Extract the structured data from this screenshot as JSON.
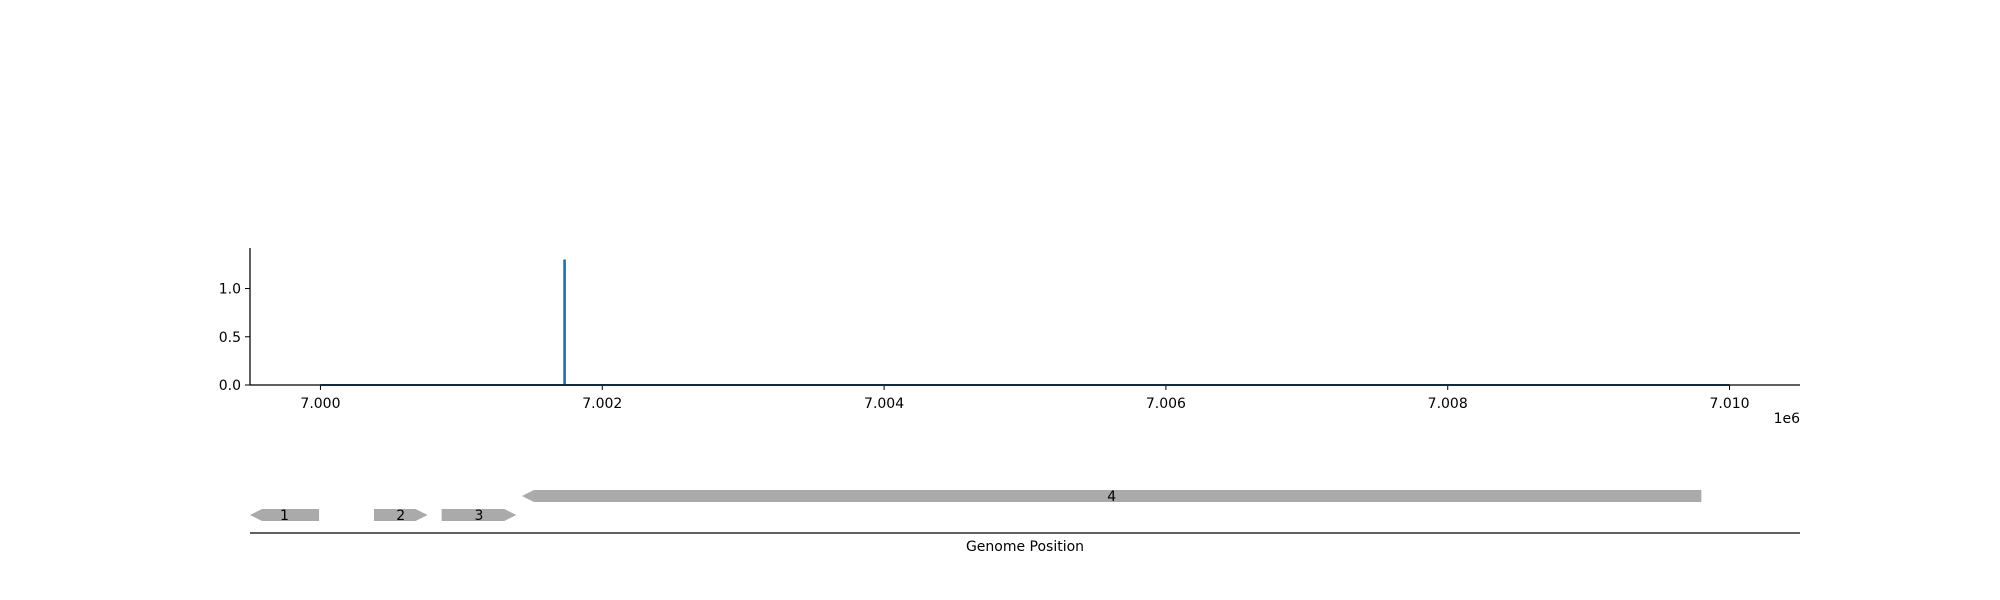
{
  "chart_data": [
    {
      "type": "line",
      "title": "",
      "xlabel": "",
      "ylabel": "",
      "x_offset_label": "1e6",
      "xlim": [
        6999500,
        7010500
      ],
      "ylim": [
        0,
        1.42
      ],
      "x_ticks": [
        7000000,
        7002000,
        7004000,
        7006000,
        7008000,
        7010000
      ],
      "x_tick_labels": [
        "7.000",
        "7.002",
        "7.004",
        "7.006",
        "7.008",
        "7.010"
      ],
      "y_ticks": [
        0.0,
        0.5,
        1.0
      ],
      "y_tick_labels": [
        "0.0",
        "0.5",
        "1.0"
      ],
      "grid": false,
      "series_color": "#1f77b4",
      "series": [
        {
          "points": [
            [
              7000000,
              0.0
            ],
            [
              7001730,
              0.0
            ],
            [
              7001730,
              1.29
            ],
            [
              7001735,
              1.29
            ],
            [
              7001735,
              0.0
            ],
            [
              7010000,
              0.0
            ]
          ]
        }
      ]
    },
    {
      "type": "gene-track",
      "xlabel": "Genome Position",
      "xlim": [
        6999500,
        7010500
      ],
      "feature_color": "#aaaaaa",
      "features": [
        {
          "label": "1",
          "start": 6999500,
          "end": 6999990,
          "strand": "-",
          "row": 0
        },
        {
          "label": "2",
          "start": 7000380,
          "end": 7000760,
          "strand": "+",
          "row": 0
        },
        {
          "label": "3",
          "start": 7000860,
          "end": 7001390,
          "strand": "+",
          "row": 0
        },
        {
          "label": "4",
          "start": 7001430,
          "end": 7009800,
          "strand": "-",
          "row": 1
        }
      ]
    }
  ]
}
